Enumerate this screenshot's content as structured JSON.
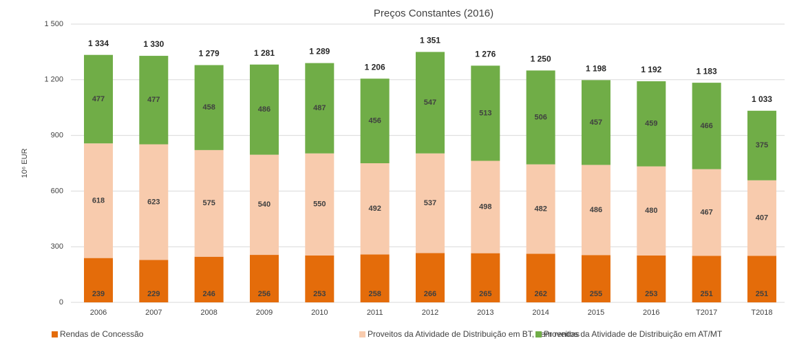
{
  "chart_data": {
    "type": "stacked_bar",
    "title": "Preços Constantes (2016)",
    "y_label": "10⁶ EUR",
    "categories": [
      "2006",
      "2007",
      "2008",
      "2009",
      "2010",
      "2011",
      "2012",
      "2013",
      "2014",
      "2015",
      "2016",
      "T2017",
      "T2018"
    ],
    "series": [
      {
        "name": "Rendas de Concessão",
        "color": "#e46c0a",
        "values": [
          239,
          229,
          246,
          256,
          253,
          258,
          266,
          265,
          262,
          255,
          253,
          251,
          251
        ]
      },
      {
        "name": "Proveitos da Atividade de Distribuição em BT, sem rendas",
        "color": "#f8cbad",
        "values": [
          618,
          623,
          575,
          540,
          550,
          492,
          537,
          498,
          482,
          486,
          480,
          467,
          407
        ]
      },
      {
        "name": "Proveitos da Atividade de Distribuição em AT/MT",
        "color": "#70ad47",
        "values": [
          477,
          477,
          458,
          486,
          487,
          456,
          547,
          513,
          506,
          457,
          459,
          466,
          375
        ]
      }
    ],
    "totals": {
      "values": [
        1334,
        1330,
        1279,
        1281,
        1289,
        1206,
        1351,
        1276,
        1250,
        1198,
        1192,
        1183,
        1033
      ],
      "value_labels": [
        "1 334",
        "1 330",
        "1 279",
        "1 281",
        "1 289",
        "1 206",
        "1 351",
        "1 276",
        "1 250",
        "1 198",
        "1 192",
        "1 183",
        "1 033"
      ]
    },
    "ylim": [
      0,
      1500
    ],
    "yticks": [
      0,
      300,
      600,
      900,
      {
        "value": 1200,
        "label": "1 200"
      },
      {
        "value": 1500,
        "label": "1 500"
      }
    ],
    "grid": true,
    "legend": "bottom"
  }
}
